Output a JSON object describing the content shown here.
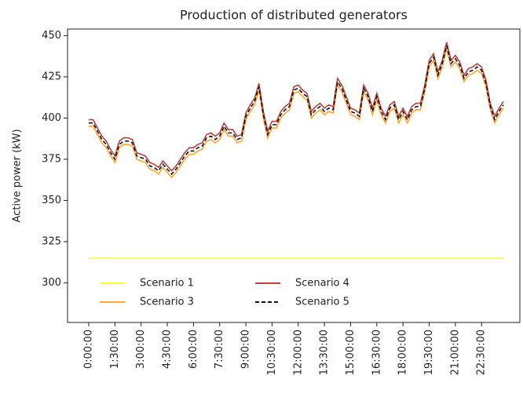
{
  "chart_data": {
    "type": "line",
    "title": "Production of distributed generators",
    "ylabel": "Active power (kW)",
    "categories": [
      "0:00:00",
      null,
      null,
      null,
      null,
      null,
      "1:30:00",
      null,
      null,
      null,
      null,
      null,
      "3:00:00",
      null,
      null,
      null,
      null,
      null,
      "4:30:00",
      null,
      null,
      null,
      null,
      null,
      "6:00:00",
      null,
      null,
      null,
      null,
      null,
      "7:30:00",
      null,
      null,
      null,
      null,
      null,
      "9:00:00",
      null,
      null,
      null,
      null,
      null,
      "10:30:00",
      null,
      null,
      null,
      null,
      null,
      "12:00:00",
      null,
      null,
      null,
      null,
      null,
      "13:30:00",
      null,
      null,
      null,
      null,
      null,
      "15:00:00",
      null,
      null,
      null,
      null,
      null,
      "16:30:00",
      null,
      null,
      null,
      null,
      null,
      "18:00:00",
      null,
      null,
      null,
      null,
      null,
      "19:30:00",
      null,
      null,
      null,
      null,
      null,
      "21:00:00",
      null,
      null,
      null,
      null,
      null,
      "22:30:00",
      null,
      null,
      null,
      null,
      null
    ],
    "ylim": [
      276,
      454
    ],
    "yticks": [
      300,
      325,
      350,
      375,
      400,
      425,
      450
    ],
    "legend": "lower center",
    "legend_columns": 3,
    "series": [
      {
        "name": "Scenario 1",
        "color": "#ffff33",
        "linestyle": "solid",
        "values": [
          315,
          315,
          315,
          315,
          315,
          315,
          315,
          315,
          315,
          315,
          315,
          315,
          315,
          315,
          315,
          315,
          315,
          315,
          315,
          315,
          315,
          315,
          315,
          315,
          315,
          315,
          315,
          315,
          315,
          315,
          315,
          315,
          315,
          315,
          315,
          315,
          315,
          315,
          315,
          315,
          315,
          315,
          315,
          315,
          315,
          315,
          315,
          315,
          315,
          315,
          315,
          315,
          315,
          315,
          315,
          315,
          315,
          315,
          315,
          315,
          315,
          315,
          315,
          315,
          315,
          315,
          315,
          315,
          315,
          315,
          315,
          315,
          315,
          315,
          315,
          315,
          315,
          315,
          315,
          315,
          315,
          315,
          315,
          315,
          315,
          315,
          315,
          315,
          315,
          315,
          315,
          315,
          315,
          315,
          315,
          315
        ]
      },
      {
        "name": "Scenario 3",
        "color": "#ffa630",
        "linestyle": "solid",
        "values": [
          395,
          395,
          390,
          385,
          382,
          377,
          373,
          382,
          384,
          384,
          383,
          375,
          374,
          373,
          369,
          368,
          366,
          370,
          367,
          364,
          367,
          371,
          375,
          378,
          378,
          380,
          381,
          386,
          387,
          385,
          387,
          393,
          389,
          389,
          385,
          386,
          399,
          404,
          408,
          417,
          400,
          388,
          394,
          394,
          400,
          403,
          405,
          415,
          416,
          413,
          411,
          400,
          403,
          405,
          402,
          404,
          403,
          420,
          416,
          409,
          402,
          401,
          399,
          416,
          411,
          402,
          411,
          402,
          397,
          404,
          406,
          397,
          402,
          397,
          403,
          405,
          405,
          416,
          431,
          435,
          424,
          431,
          442,
          431,
          434,
          430,
          422,
          426,
          427,
          429,
          427,
          419,
          405,
          397,
          402,
          406
        ]
      },
      {
        "name": "Scenario 4",
        "color": "#b84040",
        "linestyle": "solid",
        "values": [
          399,
          399,
          394,
          389,
          386,
          381,
          377,
          386,
          388,
          388,
          387,
          379,
          378,
          377,
          373,
          372,
          370,
          374,
          371,
          368,
          371,
          375,
          379,
          382,
          382,
          384,
          385,
          390,
          391,
          389,
          391,
          397,
          393,
          393,
          389,
          390,
          403,
          408,
          412,
          421,
          404,
          392,
          398,
          398,
          404,
          407,
          409,
          419,
          420,
          417,
          415,
          404,
          407,
          409,
          406,
          408,
          407,
          424,
          420,
          413,
          406,
          405,
          403,
          420,
          415,
          406,
          415,
          406,
          401,
          408,
          410,
          401,
          406,
          401,
          407,
          409,
          409,
          420,
          435,
          439,
          428,
          435,
          446,
          435,
          438,
          434,
          426,
          430,
          431,
          433,
          431,
          423,
          409,
          401,
          406,
          410
        ]
      },
      {
        "name": "Scenario 5",
        "color": "#111111",
        "linestyle": "dashed",
        "values": [
          397,
          397,
          392,
          387,
          384,
          379,
          375,
          384,
          386,
          386,
          385,
          377,
          376,
          375,
          371,
          370,
          368,
          372,
          369,
          366,
          369,
          373,
          377,
          380,
          380,
          382,
          383,
          388,
          389,
          387,
          389,
          395,
          391,
          391,
          387,
          388,
          401,
          406,
          410,
          419,
          402,
          390,
          396,
          396,
          402,
          405,
          407,
          417,
          418,
          415,
          413,
          402,
          405,
          407,
          404,
          406,
          405,
          422,
          418,
          411,
          404,
          403,
          401,
          418,
          413,
          404,
          413,
          404,
          399,
          406,
          408,
          399,
          404,
          399,
          405,
          407,
          407,
          418,
          433,
          437,
          426,
          433,
          444,
          433,
          436,
          432,
          424,
          428,
          429,
          431,
          429,
          421,
          407,
          399,
          404,
          408
        ]
      }
    ]
  }
}
